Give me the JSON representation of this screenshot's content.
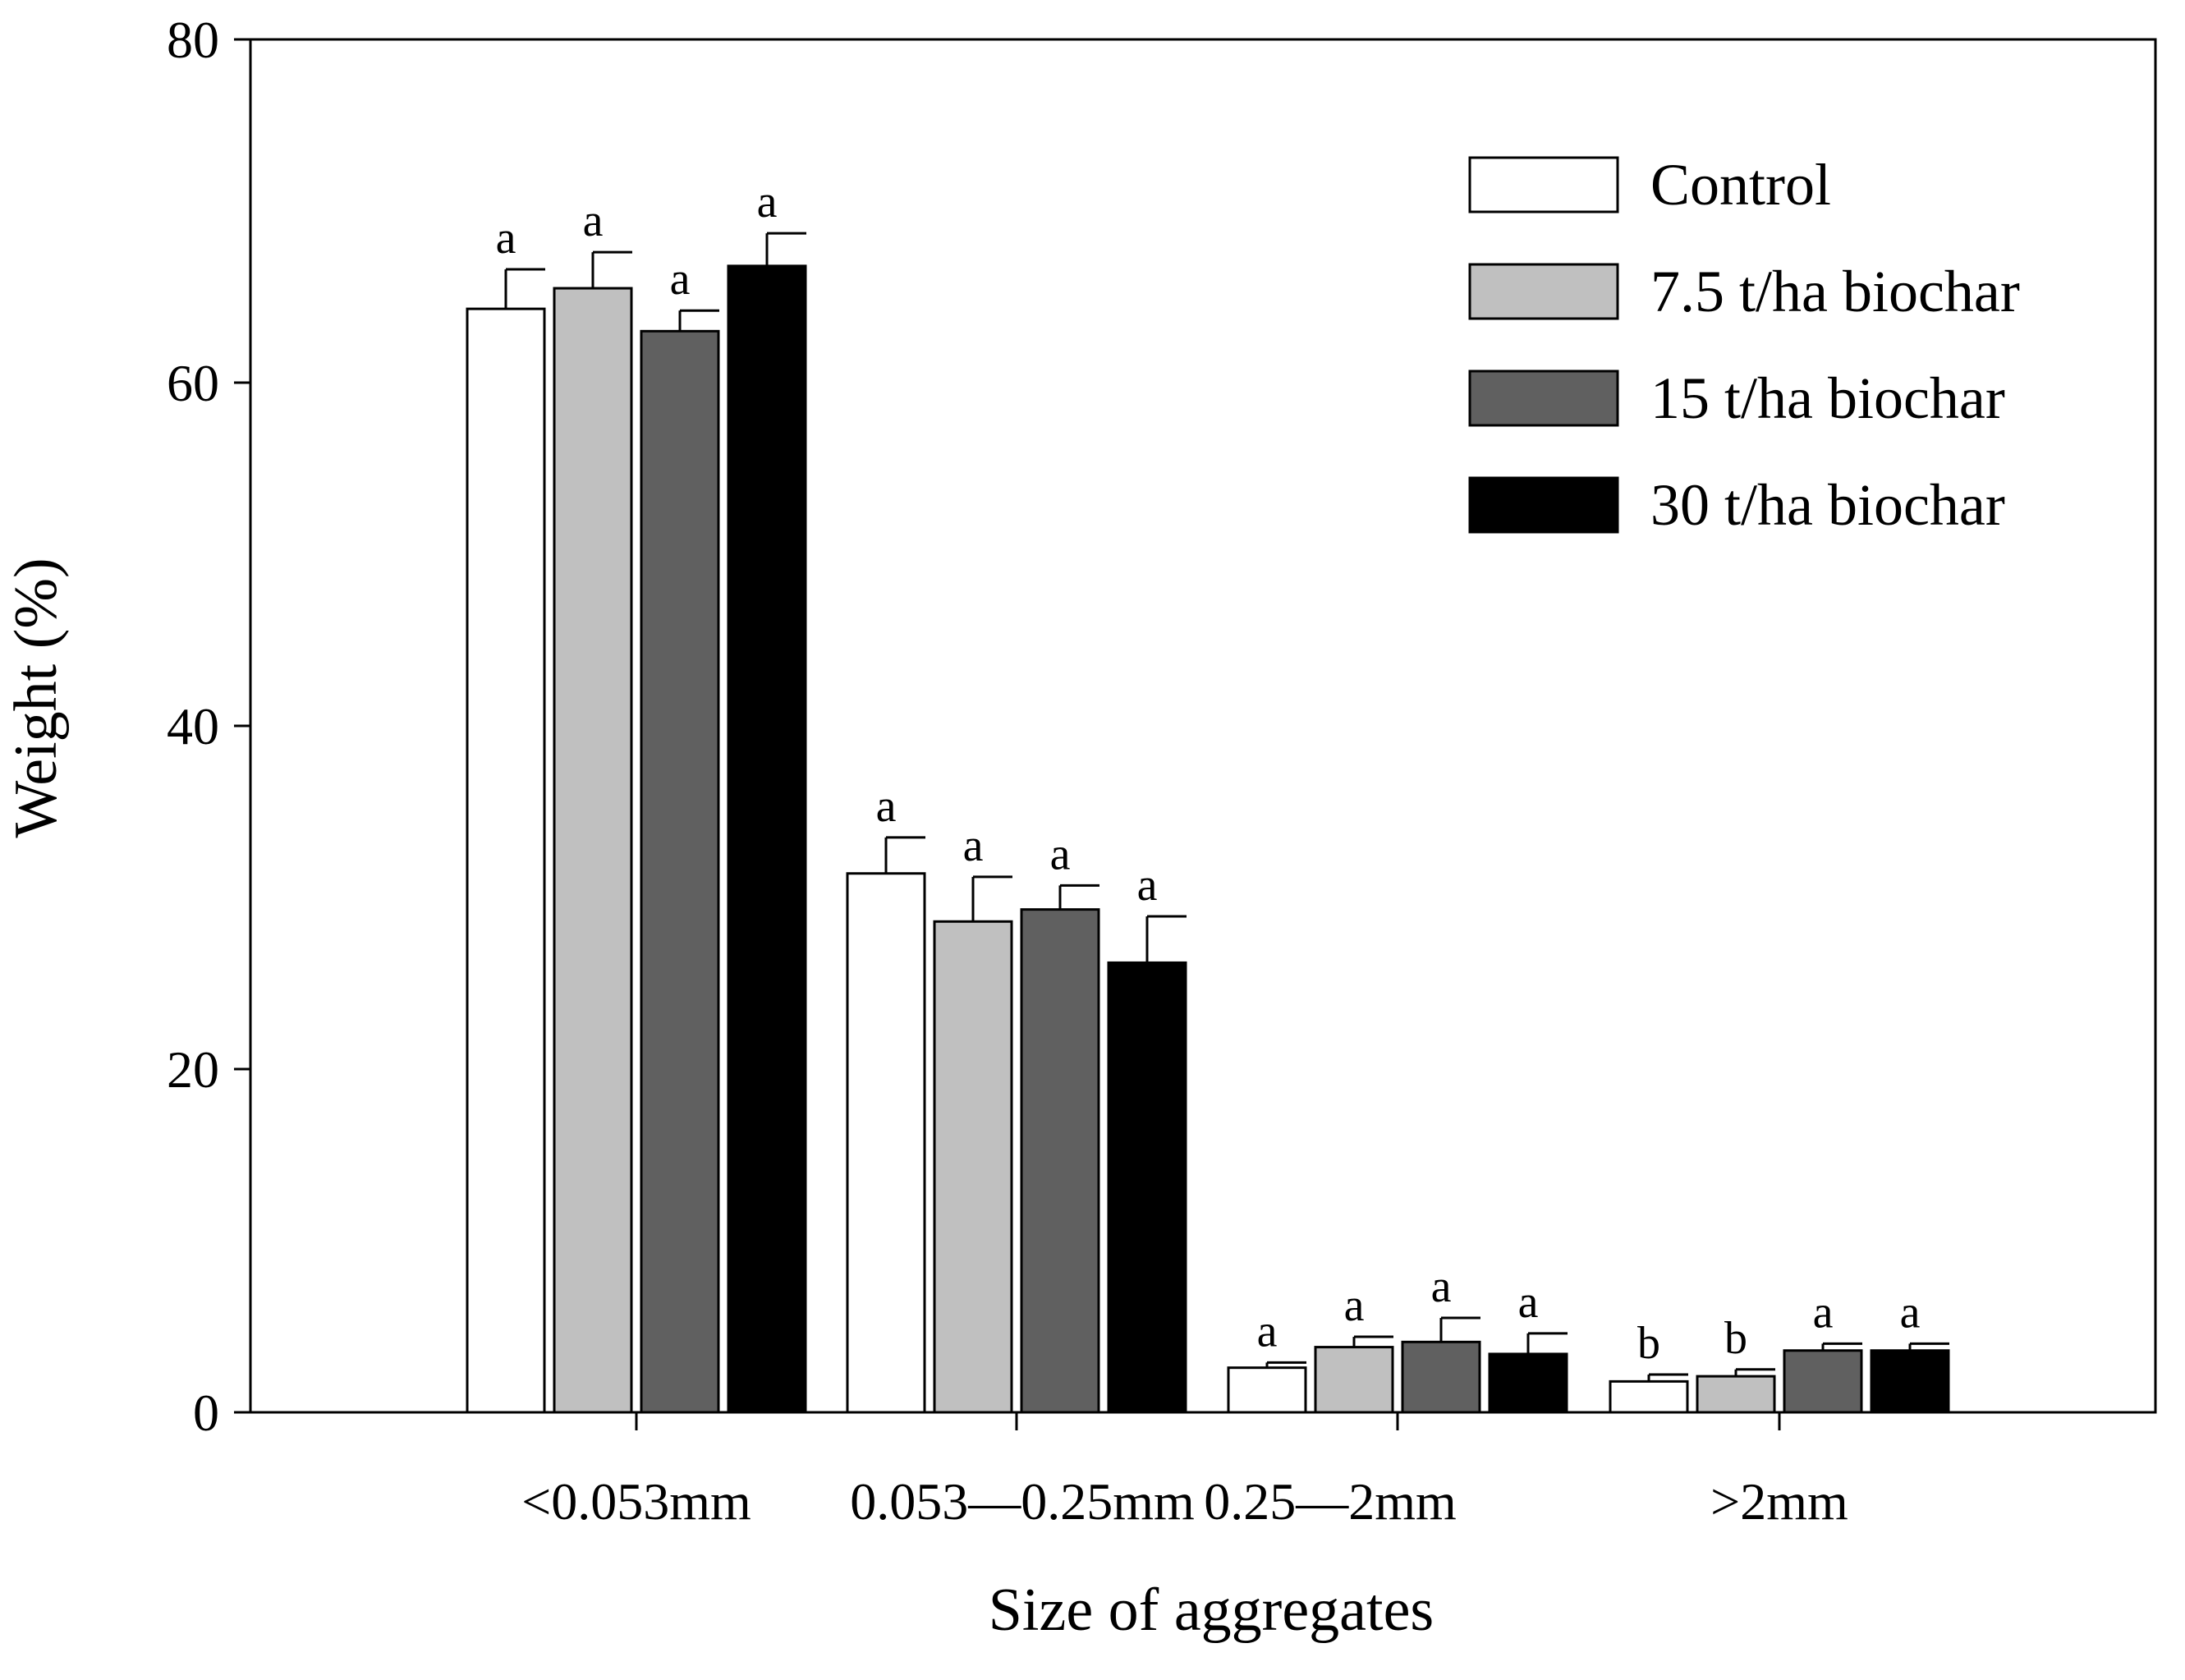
{
  "chart_data": {
    "type": "bar",
    "title": "",
    "xlabel": "Size of aggregates",
    "ylabel": "Weight (%)",
    "ylim": [
      0,
      80
    ],
    "yticks": [
      0,
      20,
      40,
      60,
      80
    ],
    "grid": false,
    "legend_position": "top-right",
    "categories": [
      "<0.053mm",
      "0.053—0.25mm",
      "0.25—2mm",
      ">2mm"
    ],
    "series": [
      {
        "name": "Control",
        "color": "#ffffff",
        "values": [
          64.3,
          31.4,
          2.6,
          1.8
        ],
        "errors": [
          2.3,
          2.1,
          0.3,
          0.4
        ],
        "sig": [
          "a",
          "a",
          "a",
          "b"
        ]
      },
      {
        "name": "7.5 t/ha biochar",
        "color": "#c0c0c0",
        "values": [
          65.5,
          28.6,
          3.8,
          2.1
        ],
        "errors": [
          2.1,
          2.6,
          0.6,
          0.4
        ],
        "sig": [
          "a",
          "a",
          "a",
          "b"
        ]
      },
      {
        "name": "15 t/ha biochar",
        "color": "#606060",
        "values": [
          63.0,
          29.3,
          4.1,
          3.6
        ],
        "errors": [
          1.2,
          1.4,
          1.4,
          0.4
        ],
        "sig": [
          "a",
          "a",
          "a",
          "a"
        ]
      },
      {
        "name": "30 t/ha biochar",
        "color": "#000000",
        "values": [
          66.8,
          26.2,
          3.4,
          3.6
        ],
        "errors": [
          1.9,
          2.7,
          1.2,
          0.4
        ],
        "sig": [
          "a",
          "a",
          "a",
          "a"
        ]
      }
    ]
  }
}
